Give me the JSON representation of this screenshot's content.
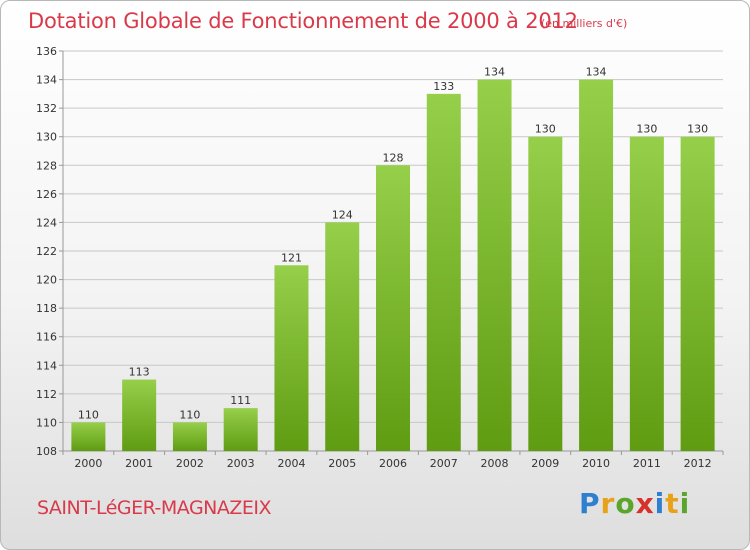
{
  "header": {
    "title": "Dotation Globale de Fonctionnement de 2000 à 2012",
    "subtitle": "(en milliers d'€)"
  },
  "footer": {
    "commune": "SAINT-LéGER-MAGNAZEIX",
    "logo": [
      "P",
      "r",
      "o",
      "x",
      "i",
      "t",
      "i"
    ],
    "logo_colors": [
      "#2e7fd0",
      "#e8a21a",
      "#5aa52a",
      "#d6312b",
      "#2e7fd0",
      "#e8a21a",
      "#5aa52a"
    ]
  },
  "colors": {
    "bar": "#8cc63f",
    "bar_dark": "#64a014",
    "grid": "#c8c8c8",
    "title": "#d93a4a"
  },
  "chart_data": {
    "type": "bar",
    "title": "Dotation Globale de Fonctionnement de 2000 à 2012",
    "subtitle": "(en milliers d'€)",
    "categories": [
      "2000",
      "2001",
      "2002",
      "2003",
      "2004",
      "2005",
      "2006",
      "2007",
      "2008",
      "2009",
      "2010",
      "2011",
      "2012"
    ],
    "values": [
      110,
      113,
      110,
      111,
      121,
      124,
      128,
      133,
      134,
      130,
      134,
      130,
      130
    ],
    "ylim": [
      108,
      136
    ],
    "yticks": [
      108,
      110,
      112,
      114,
      116,
      118,
      120,
      122,
      124,
      126,
      128,
      130,
      132,
      134,
      136
    ],
    "grid": true,
    "data_labels": true
  }
}
